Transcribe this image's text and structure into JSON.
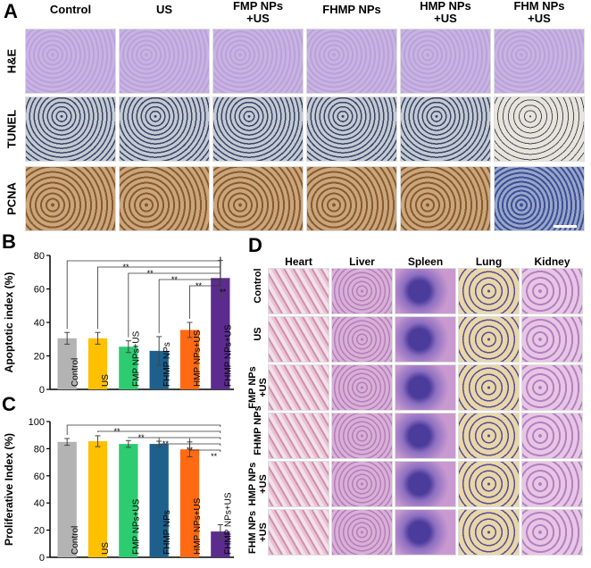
{
  "panel_a": {
    "letter": "A",
    "columns": [
      "Control",
      "US",
      "FMP NPs\n+US",
      "FHMP NPs",
      "HMP NPs\n+US",
      "FHM NPs\n+US"
    ],
    "rows": [
      "H&E",
      "TUNEL",
      "PCNA"
    ]
  },
  "panel_d": {
    "letter": "D",
    "columns": [
      "Heart",
      "Liver",
      "Spleen",
      "Lung",
      "Kidney"
    ],
    "rows": [
      "Control",
      "US",
      "FMP NPs\n+US",
      "FHMP NPs",
      "HMP NPs\n+US",
      "FHM NPs\n+US"
    ]
  },
  "chart_data": [
    {
      "panel": "B",
      "type": "bar",
      "ylabel": "Apoptotic index (%)",
      "ylim": [
        0,
        80
      ],
      "yticks": [
        "0",
        "20",
        "40",
        "60",
        "80"
      ],
      "categories": [
        "Control",
        "US",
        "FMP NPs+US",
        "FHMP NPs",
        "HMP NPs+US",
        "FHMP NPs+US"
      ],
      "values": [
        30.5,
        30.5,
        25.5,
        23,
        35.5,
        66.5
      ],
      "errors": [
        3.5,
        3.5,
        3.5,
        8.5,
        4.5,
        10.5
      ],
      "colors": [
        "#b3b3b3",
        "#ffc000",
        "#2ecc71",
        "#1f5f8b",
        "#ff6a13",
        "#5b2c8e"
      ],
      "significance": [
        "**",
        "**",
        "**",
        "**",
        "**"
      ]
    },
    {
      "panel": "C",
      "type": "bar",
      "ylabel": "Proliferative Index (%)",
      "ylim": [
        0,
        100
      ],
      "yticks": [
        "0",
        "20",
        "40",
        "60",
        "80",
        "100"
      ],
      "categories": [
        "Control",
        "US",
        "FMP NPs+US",
        "FHMP NPs",
        "HMP NPs+US",
        "FHMP NPs+US"
      ],
      "values": [
        85,
        85.5,
        83.5,
        83.5,
        79.5,
        19
      ],
      "errors": [
        2.5,
        4,
        2.5,
        2,
        5.5,
        5
      ],
      "colors": [
        "#b3b3b3",
        "#ffc000",
        "#2ecc71",
        "#1f5f8b",
        "#ff6a13",
        "#5b2c8e"
      ],
      "significance": [
        "**",
        "**",
        "**",
        "**",
        "**"
      ]
    }
  ]
}
